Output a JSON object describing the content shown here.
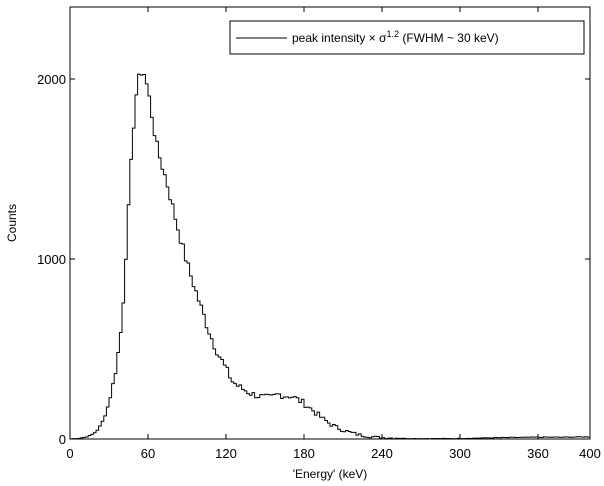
{
  "chart_data": {
    "type": "line",
    "style": "stairs",
    "title": "",
    "xlabel": "'Energy' (keV)",
    "ylabel": "Counts",
    "xlim": [
      0,
      400
    ],
    "ylim": [
      0,
      2400
    ],
    "grid": false,
    "legend_position": "top-right",
    "xticks": [
      "0",
      "60",
      "120",
      "180",
      "240",
      "300",
      "360",
      "400"
    ],
    "xtick_values": [
      0,
      60,
      120,
      180,
      240,
      300,
      360,
      400
    ],
    "yticks": [
      "0",
      "1000",
      "2000"
    ],
    "ytick_values": [
      0,
      1000,
      2000
    ],
    "series": [
      {
        "name": "peak intensity × σ^1.2 (FWHM ~ 30 keV)",
        "color": "#000000",
        "x": [
          0,
          8,
          12,
          16,
          20,
          24,
          28,
          32,
          36,
          40,
          42,
          44,
          46,
          48,
          50,
          52,
          54,
          56,
          58,
          60,
          62,
          64,
          66,
          68,
          70,
          72,
          74,
          76,
          78,
          80,
          84,
          88,
          92,
          96,
          100,
          105,
          110,
          115,
          120,
          125,
          130,
          135,
          140,
          145,
          150,
          155,
          160,
          165,
          170,
          175,
          180,
          185,
          190,
          195,
          200,
          205,
          210,
          215,
          220,
          225,
          230,
          240,
          250,
          260,
          280,
          300,
          320,
          340,
          360,
          380,
          400
        ],
        "y": [
          0,
          5,
          10,
          20,
          40,
          80,
          150,
          260,
          420,
          650,
          900,
          1150,
          1400,
          1650,
          1850,
          1980,
          2020,
          2060,
          2000,
          1940,
          1850,
          1750,
          1660,
          1590,
          1540,
          1490,
          1440,
          1380,
          1320,
          1260,
          1140,
          1030,
          930,
          840,
          750,
          640,
          540,
          460,
          390,
          320,
          290,
          270,
          250,
          240,
          230,
          230,
          250,
          240,
          240,
          220,
          200,
          170,
          140,
          110,
          85,
          65,
          50,
          38,
          28,
          20,
          14,
          8,
          5,
          3,
          2,
          3,
          6,
          8,
          10,
          10,
          12
        ]
      }
    ]
  }
}
